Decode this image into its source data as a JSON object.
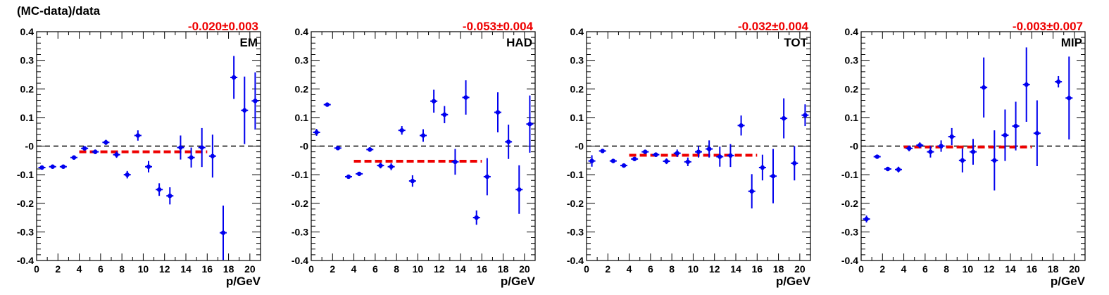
{
  "figure": {
    "ylabel": "(MC-data)/data",
    "xlabel": "p/GeV",
    "colors": {
      "points": "#0000ee",
      "fit": "#ee0000",
      "zero_line": "#000000",
      "axis": "#000000"
    }
  },
  "chart_data": [
    {
      "type": "scatter",
      "panel_label": "EM",
      "fit_text": "-0.020±0.003",
      "xlabel": "p/GeV",
      "ylabel": "(MC-data)/data",
      "xlim": [
        0,
        21
      ],
      "ylim": [
        -0.4,
        0.4
      ],
      "x_ticks": [
        0,
        2,
        4,
        6,
        8,
        10,
        12,
        14,
        16,
        18,
        20
      ],
      "y_ticks": [
        -0.4,
        -0.3,
        -0.2,
        -0.1,
        0,
        0.1,
        0.2,
        0.3,
        0.4
      ],
      "y_tick_labels": [
        "-0.4",
        "-0.3",
        "-0.2",
        "-0.1",
        "-0",
        "0.1",
        "0.2",
        "0.3",
        "0.4"
      ],
      "zero_line": true,
      "fit": {
        "value": -0.02,
        "x_range": [
          4,
          16
        ]
      },
      "series": [
        {
          "x": [
            0.5,
            1.5,
            2.5,
            3.5,
            4.5,
            5.5,
            6.5,
            7.5,
            8.5,
            9.5,
            10.5,
            11.5,
            12.5,
            13.5,
            14.5,
            15.5,
            16.5,
            17.5,
            18.5,
            19.5,
            20.5
          ],
          "y": [
            -0.075,
            -0.072,
            -0.072,
            -0.04,
            -0.008,
            -0.02,
            0.013,
            -0.03,
            -0.1,
            0.037,
            -0.072,
            -0.152,
            -0.174,
            -0.005,
            -0.04,
            -0.005,
            -0.035,
            -0.303,
            0.24,
            0.125,
            0.158
          ],
          "err": [
            0.006,
            0.006,
            0.006,
            0.007,
            0.008,
            0.008,
            0.009,
            0.011,
            0.013,
            0.018,
            0.02,
            0.022,
            0.03,
            0.042,
            0.035,
            0.068,
            0.075,
            0.095,
            0.075,
            0.118,
            0.1
          ]
        }
      ]
    },
    {
      "type": "scatter",
      "panel_label": "HAD",
      "fit_text": "-0.053±0.004",
      "xlabel": "p/GeV",
      "ylabel": "(MC-data)/data",
      "xlim": [
        0,
        21
      ],
      "ylim": [
        -0.4,
        0.4
      ],
      "x_ticks": [
        0,
        2,
        4,
        6,
        8,
        10,
        12,
        14,
        16,
        18,
        20
      ],
      "y_ticks": [
        -0.4,
        -0.3,
        -0.2,
        -0.1,
        0,
        0.1,
        0.2,
        0.3,
        0.4
      ],
      "y_tick_labels": [
        "-0.4",
        "-0.3",
        "-0.2",
        "-0.1",
        "-0",
        "0.1",
        "0.2",
        "0.3",
        "0.4"
      ],
      "zero_line": true,
      "fit": {
        "value": -0.053,
        "x_range": [
          4,
          16
        ]
      },
      "series": [
        {
          "x": [
            0.5,
            1.5,
            2.5,
            3.5,
            4.5,
            5.5,
            6.5,
            7.5,
            8.5,
            9.5,
            10.5,
            11.5,
            12.5,
            13.5,
            14.5,
            15.5,
            16.5,
            17.5,
            18.5,
            19.5,
            20.5
          ],
          "y": [
            0.048,
            0.145,
            -0.007,
            -0.107,
            -0.097,
            -0.012,
            -0.068,
            -0.072,
            0.055,
            -0.122,
            0.037,
            0.157,
            0.11,
            -0.055,
            0.17,
            -0.25,
            -0.107,
            0.118,
            0.015,
            -0.152,
            0.077
          ],
          "err": [
            0.012,
            0.006,
            0.006,
            0.006,
            0.007,
            0.008,
            0.01,
            0.012,
            0.015,
            0.02,
            0.022,
            0.04,
            0.03,
            0.045,
            0.06,
            0.025,
            0.065,
            0.07,
            0.06,
            0.085,
            0.1
          ]
        }
      ]
    },
    {
      "type": "scatter",
      "panel_label": "TOT",
      "fit_text": "-0.032±0.004",
      "xlabel": "p/GeV",
      "ylabel": "(MC-data)/data",
      "xlim": [
        0,
        21
      ],
      "ylim": [
        -0.4,
        0.4
      ],
      "x_ticks": [
        0,
        2,
        4,
        6,
        8,
        10,
        12,
        14,
        16,
        18,
        20
      ],
      "y_ticks": [
        -0.4,
        -0.3,
        -0.2,
        -0.1,
        0,
        0.1,
        0.2,
        0.3,
        0.4
      ],
      "y_tick_labels": [
        "-0.4",
        "-0.3",
        "-0.2",
        "-0.1",
        "-0",
        "0.1",
        "0.2",
        "0.3",
        "0.4"
      ],
      "zero_line": true,
      "fit": {
        "value": -0.032,
        "x_range": [
          4,
          16
        ]
      },
      "series": [
        {
          "x": [
            0.5,
            1.5,
            2.5,
            3.5,
            4.5,
            5.5,
            6.5,
            7.5,
            8.5,
            9.5,
            10.5,
            11.5,
            12.5,
            13.5,
            14.5,
            15.5,
            16.5,
            17.5,
            18.5,
            19.5,
            20.5
          ],
          "y": [
            -0.052,
            -0.017,
            -0.052,
            -0.068,
            -0.045,
            -0.02,
            -0.03,
            -0.053,
            -0.025,
            -0.055,
            -0.02,
            -0.01,
            -0.037,
            -0.033,
            0.072,
            -0.158,
            -0.075,
            -0.105,
            0.097,
            -0.06,
            0.108
          ],
          "err": [
            0.02,
            0.006,
            0.006,
            0.006,
            0.007,
            0.007,
            0.008,
            0.01,
            0.013,
            0.015,
            0.02,
            0.03,
            0.035,
            0.04,
            0.035,
            0.06,
            0.045,
            0.095,
            0.07,
            0.06,
            0.038
          ]
        }
      ]
    },
    {
      "type": "scatter",
      "panel_label": "MIP",
      "fit_text": "-0.003±0.007",
      "xlabel": "p/GeV",
      "ylabel": "(MC-data)/data",
      "xlim": [
        0,
        21
      ],
      "ylim": [
        -0.4,
        0.4
      ],
      "x_ticks": [
        0,
        2,
        4,
        6,
        8,
        10,
        12,
        14,
        16,
        18,
        20
      ],
      "y_ticks": [
        -0.4,
        -0.3,
        -0.2,
        -0.1,
        0,
        0.1,
        0.2,
        0.3,
        0.4
      ],
      "y_tick_labels": [
        "-0.4",
        "-0.3",
        "-0.2",
        "-0.1",
        "-0",
        "0.1",
        "0.2",
        "0.3",
        "0.4"
      ],
      "zero_line": true,
      "fit": {
        "value": -0.003,
        "x_range": [
          4,
          16
        ]
      },
      "series": [
        {
          "x": [
            0.5,
            1.5,
            2.5,
            3.5,
            4.5,
            5.5,
            6.5,
            7.5,
            8.5,
            9.5,
            10.5,
            11.5,
            12.5,
            13.5,
            14.5,
            15.5,
            16.5,
            18.5,
            19.5
          ],
          "y": [
            -0.255,
            -0.037,
            -0.08,
            -0.082,
            -0.008,
            0.003,
            -0.02,
            0.0,
            0.033,
            -0.05,
            -0.02,
            0.205,
            -0.05,
            0.038,
            0.07,
            0.215,
            0.045,
            0.225,
            0.168
          ],
          "err": [
            0.012,
            0.006,
            0.007,
            0.01,
            0.01,
            0.01,
            0.02,
            0.02,
            0.03,
            0.042,
            0.045,
            0.105,
            0.105,
            0.09,
            0.085,
            0.13,
            0.115,
            0.02,
            0.145
          ]
        }
      ]
    }
  ]
}
